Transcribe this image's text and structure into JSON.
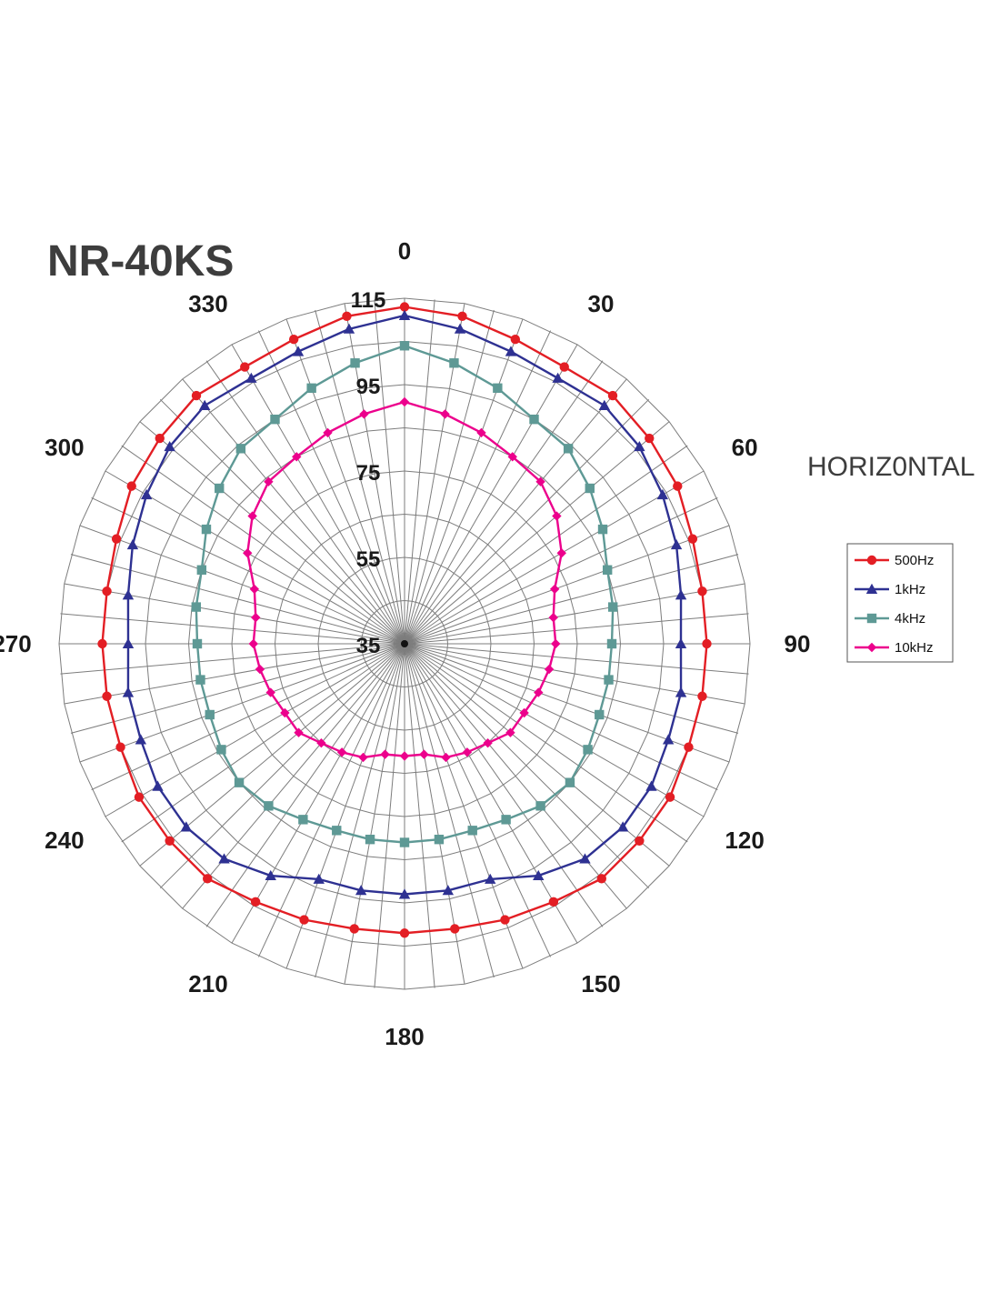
{
  "title": "NR-40KS",
  "subtitle": "HORIZ0NTAL",
  "chart_data": {
    "type": "polar-line",
    "angle_unit": "degrees",
    "angle_step": 10,
    "angle_tick_labels": [
      "0",
      "30",
      "60",
      "90",
      "120",
      "150",
      "180",
      "210",
      "240",
      "270",
      "300",
      "330"
    ],
    "radial_range": [
      35,
      115
    ],
    "radial_tick_labels": [
      "115",
      "95",
      "75",
      "55",
      "35"
    ],
    "radial_grid_values": [
      35,
      45,
      55,
      65,
      75,
      85,
      95,
      105,
      115
    ],
    "legend_position": "right",
    "angles": [
      0,
      10,
      20,
      30,
      40,
      50,
      60,
      70,
      80,
      90,
      100,
      110,
      120,
      130,
      140,
      150,
      160,
      170,
      180,
      190,
      200,
      210,
      220,
      230,
      240,
      250,
      260,
      270,
      280,
      290,
      300,
      310,
      320,
      330,
      340,
      350
    ],
    "series": [
      {
        "name": "500Hz",
        "color": "#e31e24",
        "marker": "circle",
        "values": [
          113,
          112,
          110,
          109,
          110,
          109,
          108,
          106,
          105,
          105,
          105,
          105,
          106,
          106,
          106,
          104,
          103,
          102,
          102,
          102,
          103,
          104,
          106,
          106,
          106,
          105,
          105,
          105,
          105,
          106,
          108,
          109,
          110,
          109,
          110,
          112
        ]
      },
      {
        "name": "1kHz",
        "color": "#2e3192",
        "marker": "triangle",
        "values": [
          111,
          109,
          107,
          106,
          107,
          106,
          104,
          102,
          100,
          99,
          100,
          100,
          101,
          101,
          100,
          97,
          93,
          93,
          93,
          93,
          93,
          97,
          100,
          101,
          101,
          100,
          100,
          99,
          100,
          102,
          104,
          106,
          107,
          106,
          107,
          109
        ]
      },
      {
        "name": "4kHz",
        "color": "#5e9995",
        "marker": "square",
        "values": [
          104,
          101,
          98,
          95,
          94,
          91,
          88,
          85,
          84,
          83,
          83,
          83,
          84,
          85,
          84,
          82,
          81,
          81,
          81,
          81,
          81,
          82,
          84,
          85,
          84,
          83,
          83,
          83,
          84,
          85,
          88,
          91,
          94,
          95,
          98,
          101
        ]
      },
      {
        "name": "10kHz",
        "color": "#ec008c",
        "marker": "diamond",
        "values": [
          91,
          89,
          87,
          85,
          84,
          81,
          77,
          72,
          70,
          70,
          69,
          68,
          67,
          67,
          65,
          64,
          63,
          61,
          61,
          61,
          63,
          64,
          65,
          67,
          67,
          68,
          69,
          70,
          70,
          72,
          77,
          81,
          84,
          85,
          87,
          89
        ]
      }
    ]
  }
}
